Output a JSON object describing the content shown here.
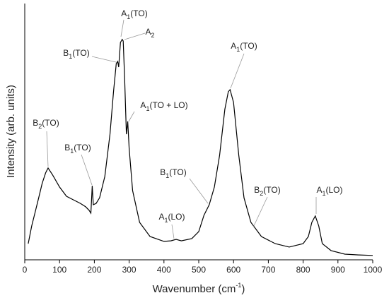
{
  "chart_data": {
    "type": "line",
    "x_label": "Wavenumber (cm-1)",
    "y_label": "Intensity (arb. units)",
    "color": "#000000",
    "x": [
      10,
      20,
      30,
      40,
      50,
      60,
      67,
      80,
      100,
      120,
      140,
      160,
      175,
      185,
      190,
      194,
      197,
      205,
      215,
      230,
      245,
      255,
      263,
      267,
      270,
      275,
      280,
      283,
      287,
      292,
      296,
      300,
      310,
      330,
      360,
      400,
      420,
      435,
      450,
      480,
      500,
      515,
      530,
      545,
      560,
      575,
      585,
      590,
      600,
      615,
      630,
      650,
      680,
      720,
      760,
      800,
      815,
      825,
      835,
      845,
      855,
      880,
      920,
      960,
      1000
    ],
    "values": [
      6.3,
      13.2,
      18.7,
      24.2,
      29.8,
      33.9,
      35.8,
      33.1,
      28.4,
      24.8,
      23.4,
      22.0,
      20.7,
      19.3,
      18.2,
      28.9,
      21.5,
      22.0,
      24.2,
      32.5,
      49.0,
      65.6,
      76.6,
      77.4,
      75.2,
      84.8,
      86.0,
      85.4,
      71.0,
      49.0,
      54.0,
      43.5,
      27.0,
      14.6,
      9.1,
      7.2,
      7.4,
      8.0,
      7.4,
      8.3,
      11.0,
      17.4,
      21.5,
      28.4,
      40.8,
      58.7,
      65.6,
      66.4,
      61.4,
      40.8,
      24.2,
      14.6,
      9.1,
      6.3,
      5.0,
      6.3,
      9.1,
      14.6,
      17.1,
      13.2,
      6.3,
      3.6,
      2.2,
      1.9,
      1.7
    ],
    "xlim": [
      0,
      1000
    ],
    "xticks": [
      0,
      100,
      200,
      300,
      400,
      500,
      600,
      700,
      800,
      900,
      1000
    ],
    "ylim": [
      0,
      100
    ],
    "annotations": [
      "A1(TO)",
      "A2",
      "B1(TO)",
      "A1(TO + LO)",
      "B2(TO)",
      "B1(TO)",
      "A1(TO)",
      "B1(TO)",
      "B2(TO)",
      "A1(LO)",
      "A1(LO)"
    ]
  }
}
